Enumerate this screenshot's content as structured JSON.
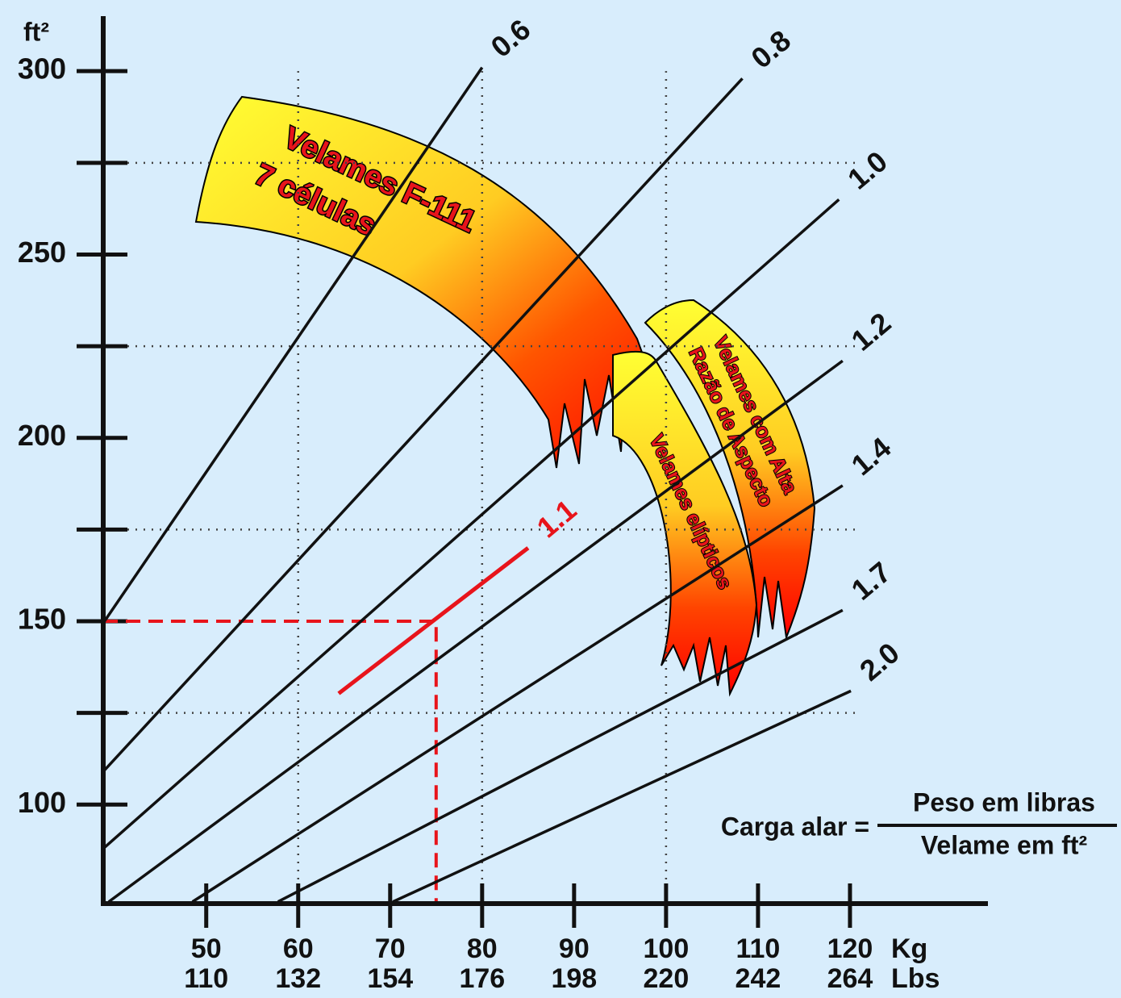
{
  "chart_data": {
    "type": "line",
    "ylabel": "ft²",
    "xlabel": "Kg",
    "x2label": "Lbs",
    "xlim": [
      38.8,
      135
    ],
    "ylim": [
      73,
      315
    ],
    "xticks": [
      50,
      60,
      70,
      80,
      90,
      100,
      110,
      120
    ],
    "x2ticks": [
      110,
      132,
      154,
      176,
      198,
      220,
      242,
      264
    ],
    "yticks": [
      100,
      150,
      200,
      250,
      300
    ],
    "yminor": [
      125,
      175,
      225,
      275
    ],
    "xgrid": [
      60,
      80,
      100
    ],
    "grid": true,
    "series": [
      {
        "name": "0.6",
        "color": "#111111",
        "x": [
          38.8,
          80
        ],
        "values": [
          149.5,
          301
        ]
      },
      {
        "name": "0.8",
        "color": "#111111",
        "x": [
          38.8,
          108.3
        ],
        "values": [
          109,
          298
        ]
      },
      {
        "name": "1.0",
        "color": "#111111",
        "x": [
          38.8,
          118.8
        ],
        "values": [
          88,
          265
        ]
      },
      {
        "name": "1.2",
        "color": "#111111",
        "x": [
          39.4,
          119.2
        ],
        "values": [
          73.5,
          221
        ]
      },
      {
        "name": "1.4",
        "color": "#111111",
        "x": [
          48.5,
          119.2
        ],
        "values": [
          73.5,
          187
        ]
      },
      {
        "name": "1.7",
        "color": "#111111",
        "x": [
          57.8,
          119.2
        ],
        "values": [
          73.5,
          153
        ]
      },
      {
        "name": "2.0",
        "color": "#111111",
        "x": [
          70.3,
          120.1
        ],
        "values": [
          73.5,
          131
        ]
      },
      {
        "name": "1.1",
        "color": "#e8141b",
        "x": [
          64.4,
          85
        ],
        "values": [
          130.3,
          170
        ]
      }
    ],
    "reference": {
      "x": 75,
      "y": 150,
      "color": "#e8141b"
    },
    "annotations": [
      "Velames F-111",
      "7 células",
      "Velames com Alta",
      "Razão de Aspecto",
      "Velames elípticos"
    ],
    "formula": {
      "left": "Carga alar =",
      "numerator": "Peso em libras",
      "denominator": "Velame em ft²"
    }
  }
}
